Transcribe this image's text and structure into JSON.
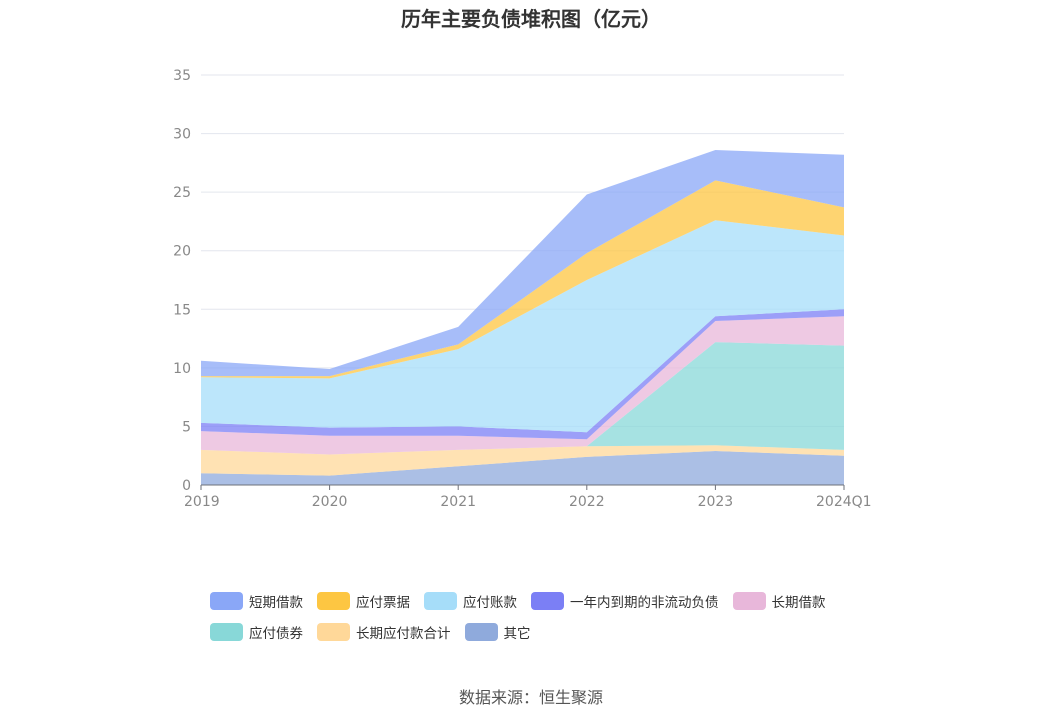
{
  "title": "历年主要负债堆积图（亿元）",
  "source": "数据来源：恒生聚源",
  "chart_data": {
    "type": "area",
    "stacked": true,
    "title": "历年主要负债堆积图（亿元）",
    "xlabel": "",
    "ylabel": "",
    "ylim": [
      0,
      35
    ],
    "yticks": [
      "0",
      "5",
      "10",
      "15",
      "20",
      "25",
      "30",
      "35"
    ],
    "categories": [
      "2019",
      "2020",
      "2021",
      "2022",
      "2023",
      "2024Q1"
    ],
    "grid": true,
    "legend_position": "bottom",
    "series": [
      {
        "name": "其它",
        "color": "#8faadc",
        "values": [
          1.0,
          0.8,
          1.6,
          2.4,
          2.9,
          2.5
        ]
      },
      {
        "name": "长期应付款合计",
        "color": "#ffd899",
        "values": [
          2.0,
          1.8,
          1.4,
          0.9,
          0.5,
          0.5
        ]
      },
      {
        "name": "应付债券",
        "color": "#88d8d8",
        "values": [
          0.0,
          0.0,
          0.0,
          0.0,
          8.8,
          8.9
        ]
      },
      {
        "name": "长期借款",
        "color": "#e8b7da",
        "values": [
          1.6,
          1.6,
          1.2,
          0.6,
          1.8,
          2.5
        ]
      },
      {
        "name": "一年内到期的非流动负债",
        "color": "#7b7ff5",
        "values": [
          0.7,
          0.7,
          0.8,
          0.6,
          0.4,
          0.6
        ]
      },
      {
        "name": "应付账款",
        "color": "#a6ddf9",
        "values": [
          3.9,
          4.2,
          6.6,
          13.0,
          8.2,
          6.3
        ]
      },
      {
        "name": "应付票据",
        "color": "#fdc642",
        "values": [
          0.1,
          0.2,
          0.4,
          2.3,
          3.4,
          2.4
        ]
      },
      {
        "name": "短期借款",
        "color": "#8aa7f7",
        "values": [
          1.3,
          0.6,
          1.5,
          5.0,
          2.6,
          4.5
        ]
      }
    ]
  },
  "legend_order": [
    "短期借款",
    "应付票据",
    "应付账款",
    "一年内到期的非流动负债",
    "长期借款",
    "应付债券",
    "长期应付款合计",
    "其它"
  ]
}
